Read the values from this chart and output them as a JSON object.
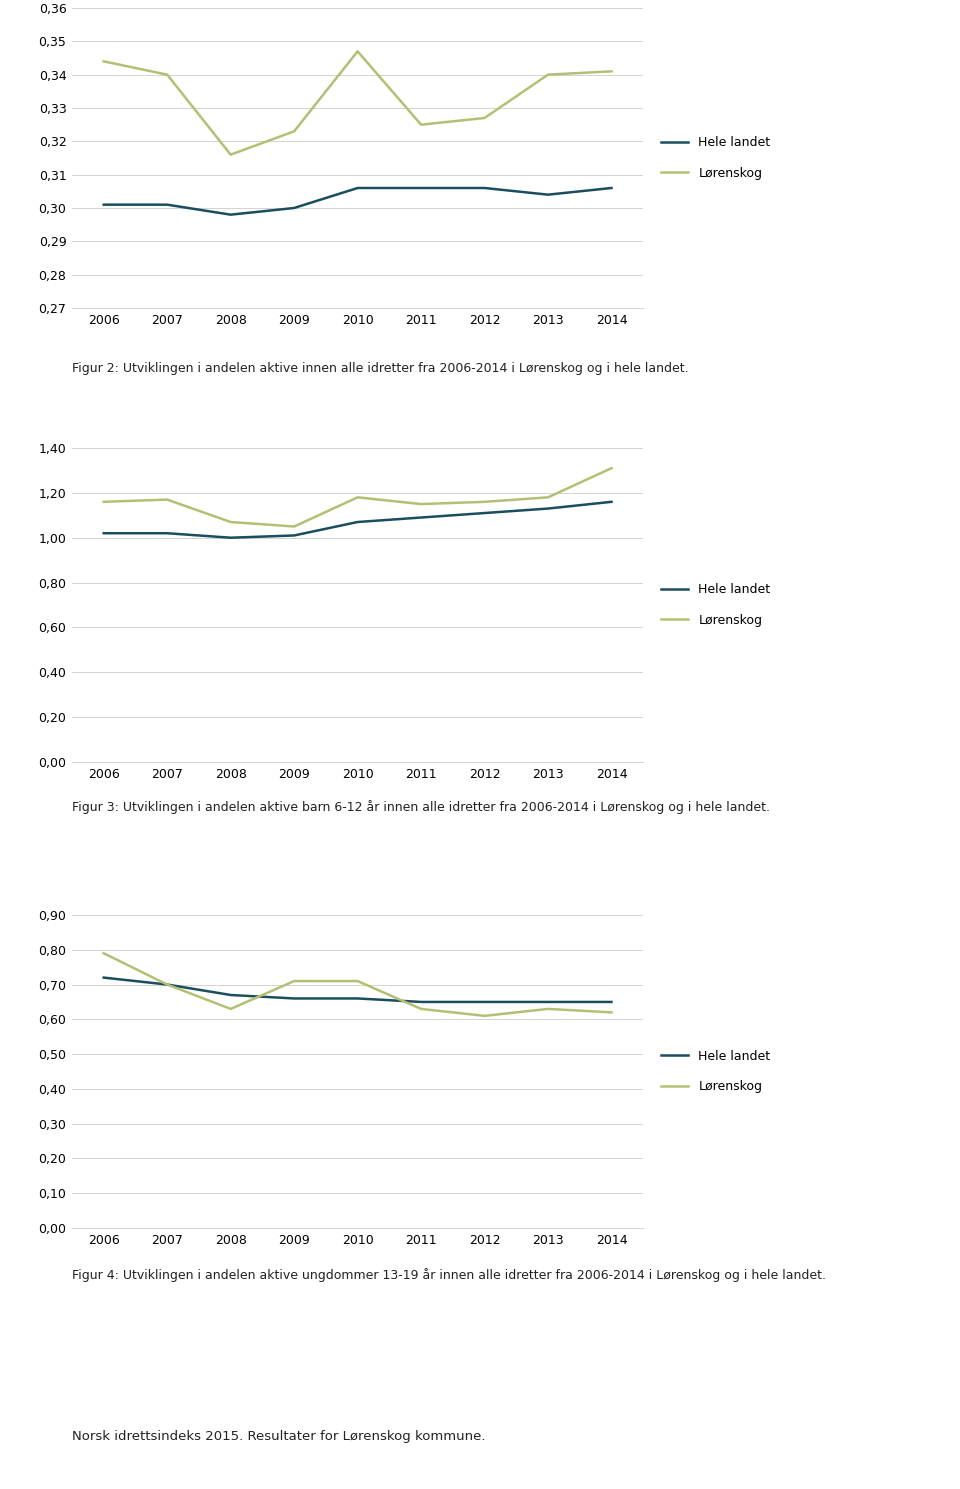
{
  "years": [
    2006,
    2007,
    2008,
    2009,
    2010,
    2011,
    2012,
    2013,
    2014
  ],
  "chart1": {
    "hele_landet": [
      0.301,
      0.301,
      0.298,
      0.3,
      0.306,
      0.306,
      0.306,
      0.304,
      0.306
    ],
    "lorenskog": [
      0.344,
      0.34,
      0.316,
      0.323,
      0.347,
      0.325,
      0.327,
      0.34,
      0.341
    ],
    "ylim": [
      0.27,
      0.36
    ],
    "yticks": [
      0.27,
      0.28,
      0.29,
      0.3,
      0.31,
      0.32,
      0.33,
      0.34,
      0.35,
      0.36
    ],
    "caption": "Figur 2: Utviklingen i andelen aktive innen alle idretter fra 2006-2014 i Lørenskog og i hele landet."
  },
  "chart2": {
    "hele_landet": [
      1.02,
      1.02,
      1.0,
      1.01,
      1.07,
      1.09,
      1.11,
      1.13,
      1.16
    ],
    "lorenskog": [
      1.16,
      1.17,
      1.07,
      1.05,
      1.18,
      1.15,
      1.16,
      1.18,
      1.31
    ],
    "ylim": [
      0.0,
      1.4
    ],
    "yticks": [
      0.0,
      0.2,
      0.4,
      0.6,
      0.8,
      1.0,
      1.2,
      1.4
    ],
    "caption": "Figur 3: Utviklingen i andelen aktive barn 6-12 år innen alle idretter fra 2006-2014 i Lørenskog og i hele landet."
  },
  "chart3": {
    "hele_landet": [
      0.72,
      0.7,
      0.67,
      0.66,
      0.66,
      0.65,
      0.65,
      0.65,
      0.65
    ],
    "lorenskog": [
      0.79,
      0.7,
      0.63,
      0.71,
      0.71,
      0.63,
      0.61,
      0.63,
      0.62
    ],
    "ylim": [
      0.0,
      0.9
    ],
    "yticks": [
      0.0,
      0.1,
      0.2,
      0.3,
      0.4,
      0.5,
      0.6,
      0.7,
      0.8,
      0.9
    ],
    "caption": "Figur 4: Utviklingen i andelen aktive ungdommer 13-19 år innen alle idretter fra 2006-2014 i Lørenskog og i hele landet."
  },
  "color_hele_landet": "#1a4d5e",
  "color_lorenskog": "#b5bf74",
  "legend_hele_landet": "Hele landet",
  "legend_lorenskog": "Lørenskog",
  "footer": "Norsk idrettsindeks 2015. Resultater for Lørenskog kommune.",
  "background_color": "#ffffff",
  "line_width": 1.8,
  "font_size_tick": 9,
  "font_size_caption": 9,
  "font_size_legend": 9,
  "font_size_footer": 9.5
}
